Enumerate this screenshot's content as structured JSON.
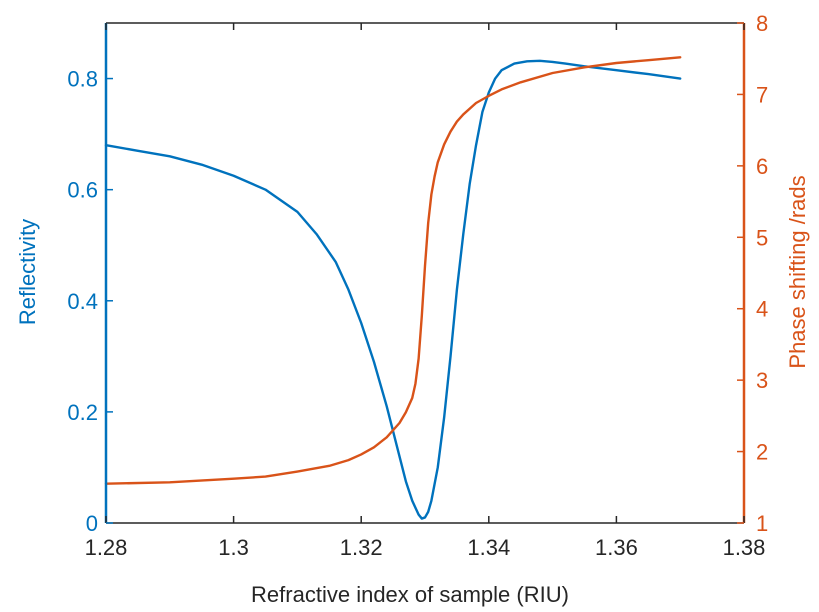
{
  "chart_data": {
    "type": "line",
    "title": "",
    "xlabel": "Refractive index of sample (RIU)",
    "ylabel_left": "Reflectivity",
    "ylabel_right": "Phase shifting /rads",
    "xlim": [
      1.28,
      1.38
    ],
    "ylim_left": [
      0,
      0.9
    ],
    "ylim_right": [
      1,
      8
    ],
    "x_ticks": [
      "1.28",
      "1.3",
      "1.32",
      "1.34",
      "1.36",
      "1.38"
    ],
    "y_left_ticks": [
      "0",
      "0.2",
      "0.4",
      "0.6",
      "0.8"
    ],
    "y_right_ticks": [
      "1",
      "2",
      "3",
      "4",
      "5",
      "6",
      "7",
      "8"
    ],
    "grid": false,
    "legend": "none",
    "series": [
      {
        "axis": "left",
        "color": "#0072BD",
        "x": [
          1.28,
          1.285,
          1.29,
          1.295,
          1.3,
          1.305,
          1.31,
          1.313,
          1.316,
          1.318,
          1.32,
          1.322,
          1.324,
          1.326,
          1.327,
          1.328,
          1.329,
          1.3295,
          1.33,
          1.3305,
          1.331,
          1.332,
          1.333,
          1.334,
          1.335,
          1.336,
          1.337,
          1.338,
          1.339,
          1.34,
          1.341,
          1.342,
          1.344,
          1.346,
          1.348,
          1.35,
          1.352,
          1.355,
          1.36,
          1.365,
          1.37
        ],
        "values": [
          0.68,
          0.67,
          0.66,
          0.645,
          0.625,
          0.6,
          0.56,
          0.52,
          0.47,
          0.42,
          0.36,
          0.29,
          0.21,
          0.12,
          0.075,
          0.04,
          0.015,
          0.008,
          0.01,
          0.02,
          0.04,
          0.1,
          0.19,
          0.3,
          0.42,
          0.52,
          0.61,
          0.68,
          0.74,
          0.775,
          0.8,
          0.815,
          0.827,
          0.831,
          0.832,
          0.83,
          0.827,
          0.822,
          0.815,
          0.808,
          0.8
        ]
      },
      {
        "axis": "right",
        "color": "#D95319",
        "x": [
          1.28,
          1.29,
          1.3,
          1.305,
          1.31,
          1.315,
          1.318,
          1.32,
          1.322,
          1.324,
          1.326,
          1.327,
          1.328,
          1.3285,
          1.329,
          1.3295,
          1.33,
          1.3305,
          1.331,
          1.3315,
          1.332,
          1.333,
          1.334,
          1.335,
          1.336,
          1.338,
          1.34,
          1.342,
          1.345,
          1.35,
          1.355,
          1.36,
          1.365,
          1.37
        ],
        "values": [
          1.55,
          1.57,
          1.62,
          1.65,
          1.72,
          1.8,
          1.88,
          1.96,
          2.06,
          2.2,
          2.4,
          2.55,
          2.75,
          2.95,
          3.3,
          3.9,
          4.6,
          5.2,
          5.6,
          5.85,
          6.05,
          6.3,
          6.48,
          6.62,
          6.72,
          6.88,
          6.98,
          7.07,
          7.17,
          7.3,
          7.38,
          7.44,
          7.48,
          7.52
        ]
      }
    ]
  }
}
